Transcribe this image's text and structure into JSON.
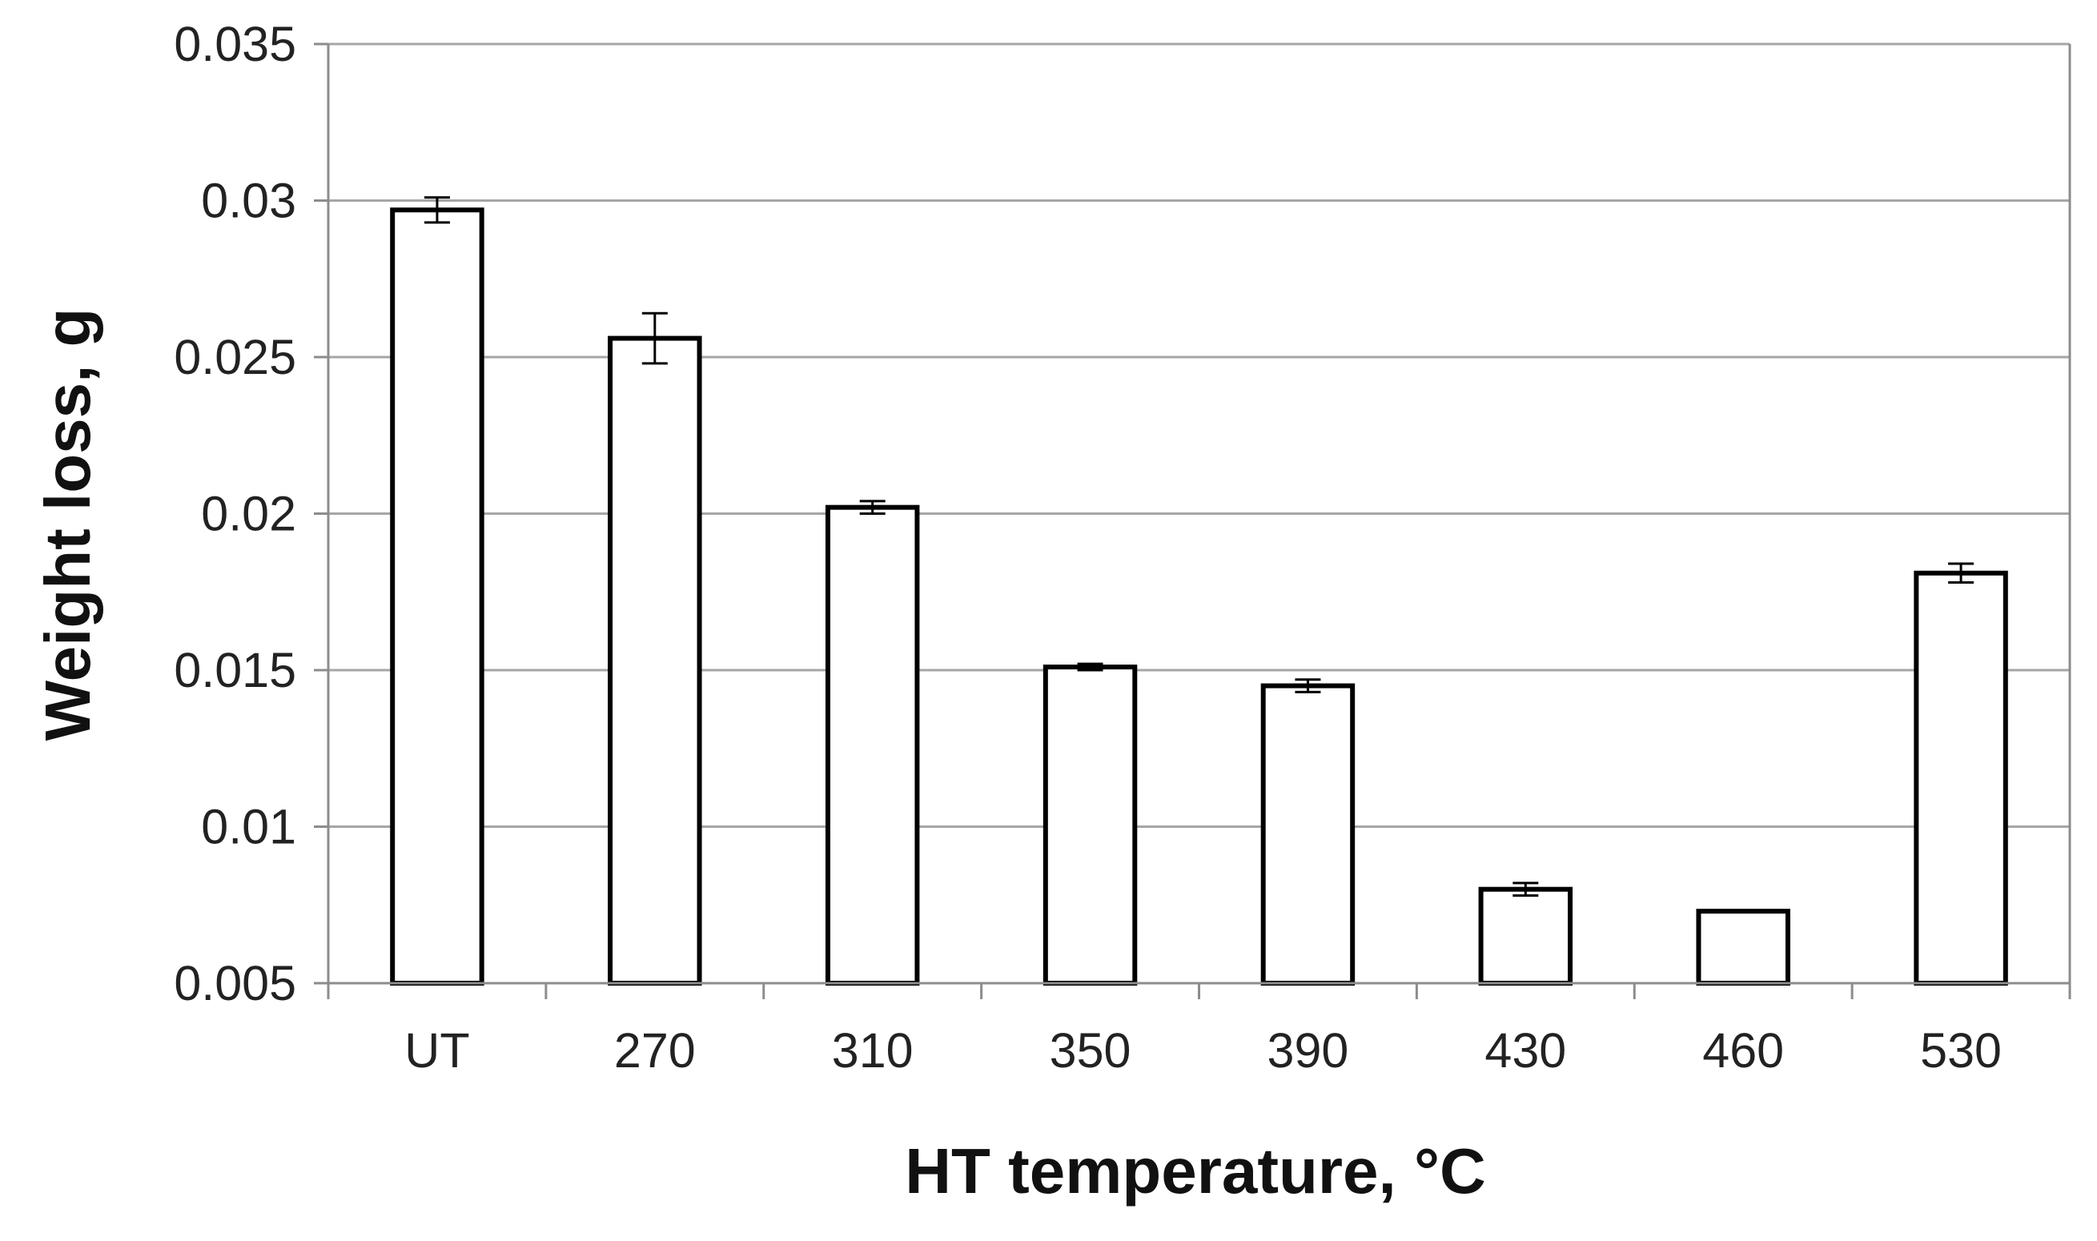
{
  "chart_data": {
    "type": "bar",
    "title": "",
    "xlabel": "HT temperature, °C",
    "ylabel": "Weight loss, g",
    "categories": [
      "UT",
      "270",
      "310",
      "350",
      "390",
      "430",
      "460",
      "530"
    ],
    "series": [
      {
        "values": [
          0.0297,
          0.0256,
          0.0202,
          0.0151,
          0.0145,
          0.008,
          0.0073,
          0.0181
        ],
        "error": [
          0.0004,
          0.0008,
          0.0002,
          0.0001,
          0.0002,
          0.0002,
          0.0,
          0.0003
        ]
      }
    ],
    "ylim": [
      0.005,
      0.035
    ],
    "yticks": [
      0.005,
      0.01,
      0.015,
      0.02,
      0.025,
      0.03,
      0.035
    ],
    "ytick_labels": [
      "0.005",
      "0.01",
      "0.015",
      "0.02",
      "0.025",
      "0.03",
      "0.035"
    ],
    "grid": "horizontal",
    "legend": "none",
    "colors": {
      "bar_fill": "#ffffff",
      "bar_stroke": "#000000",
      "grid": "#a6a6a6",
      "axis": "#8c8c8c",
      "error_bar": "#000000"
    }
  }
}
